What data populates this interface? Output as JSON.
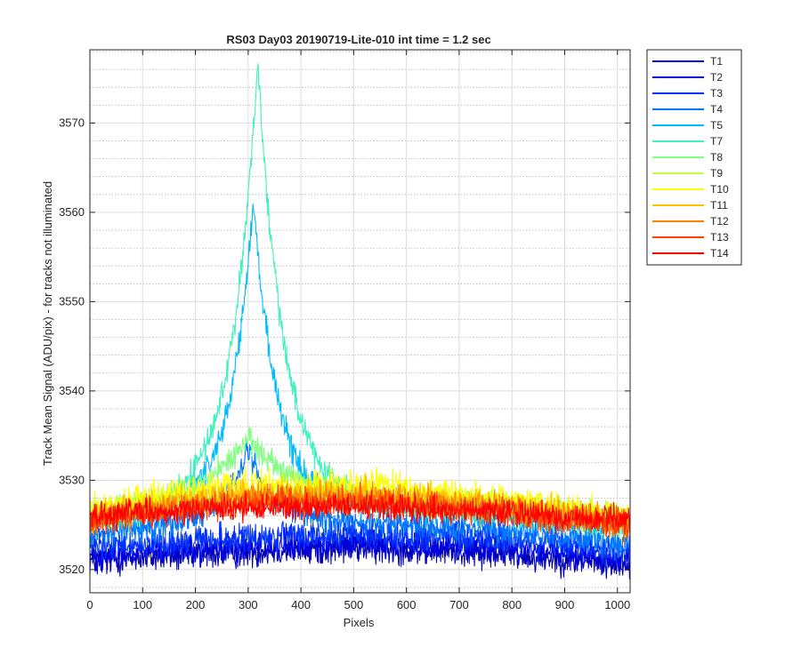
{
  "chart_data": {
    "type": "line",
    "title": "RS03 Day03 20190719-Lite-010 int time = 1.2 sec",
    "xlabel": "Pixels",
    "ylabel": "Track Mean Signal (ADU/pix) - for tracks not illuminated",
    "xlim": [
      0,
      1024
    ],
    "ylim": [
      3517.4,
      3578.2
    ],
    "x_ticks": [
      "0",
      "100",
      "200",
      "300",
      "400",
      "500",
      "600",
      "700",
      "800",
      "900",
      "1000"
    ],
    "y_ticks": [
      "3520",
      "3530",
      "3540",
      "3550",
      "3560",
      "3570"
    ],
    "grid": true,
    "minor_grid": true,
    "legend_position": "outside-top-right",
    "series": [
      {
        "name": "T1",
        "color": "#0000b0",
        "baseline": [
          [
            0,
            3521
          ],
          [
            300,
            3522
          ],
          [
            500,
            3522.5
          ],
          [
            750,
            3522
          ],
          [
            1024,
            3520.5
          ]
        ],
        "noise": 1.5
      },
      {
        "name": "T2",
        "color": "#0000e0",
        "baseline": [
          [
            0,
            3521.5
          ],
          [
            300,
            3522.5
          ],
          [
            500,
            3523
          ],
          [
            750,
            3522.5
          ],
          [
            1024,
            3521
          ]
        ],
        "noise": 1.5
      },
      {
        "name": "T3",
        "color": "#0033ff",
        "baseline": [
          [
            0,
            3522.5
          ],
          [
            300,
            3523.5
          ],
          [
            500,
            3524
          ],
          [
            750,
            3523.5
          ],
          [
            1024,
            3522
          ]
        ],
        "noise": 1.5
      },
      {
        "name": "T4",
        "color": "#0077ff",
        "baseline": [
          [
            0,
            3524
          ],
          [
            150,
            3525
          ],
          [
            300,
            3525.5
          ],
          [
            500,
            3525.5
          ],
          [
            750,
            3524.5
          ],
          [
            1024,
            3523
          ]
        ],
        "noise": 1.4,
        "peak": {
          "center": 300,
          "amplitude": 8,
          "width": 45
        }
      },
      {
        "name": "T5",
        "color": "#00bbff",
        "baseline": [
          [
            0,
            3525
          ],
          [
            150,
            3526
          ],
          [
            300,
            3527
          ],
          [
            500,
            3527
          ],
          [
            750,
            3526
          ],
          [
            1024,
            3524.5
          ]
        ],
        "noise": 1.3,
        "peak": {
          "center": 310,
          "amplitude": 34,
          "width": 45
        }
      },
      {
        "name": "T7",
        "color": "#40f0c0",
        "baseline": [
          [
            0,
            3525.5
          ],
          [
            150,
            3526.5
          ],
          [
            300,
            3527.5
          ],
          [
            500,
            3527.5
          ],
          [
            750,
            3526.5
          ],
          [
            1024,
            3525
          ]
        ],
        "noise": 1.3,
        "peak": {
          "center": 318,
          "amplitude": 49,
          "width": 50
        }
      },
      {
        "name": "T8",
        "color": "#80ff80",
        "baseline": [
          [
            0,
            3526
          ],
          [
            150,
            3527
          ],
          [
            300,
            3528
          ],
          [
            500,
            3528
          ],
          [
            750,
            3527
          ],
          [
            1024,
            3525.5
          ]
        ],
        "noise": 1.3,
        "peak": {
          "center": 300,
          "amplitude": 7,
          "width": 80
        }
      },
      {
        "name": "T9",
        "color": "#c0ff40",
        "baseline": [
          [
            0,
            3526.5
          ],
          [
            150,
            3527.5
          ],
          [
            300,
            3528.5
          ],
          [
            550,
            3528.5
          ],
          [
            750,
            3527.5
          ],
          [
            1024,
            3526
          ]
        ],
        "noise": 1.3
      },
      {
        "name": "T10",
        "color": "#ffff00",
        "baseline": [
          [
            0,
            3527
          ],
          [
            150,
            3528.5
          ],
          [
            300,
            3529.5
          ],
          [
            550,
            3529.5
          ],
          [
            750,
            3528
          ],
          [
            1024,
            3526
          ]
        ],
        "noise": 1.4
      },
      {
        "name": "T11",
        "color": "#ffc000",
        "baseline": [
          [
            0,
            3526
          ],
          [
            150,
            3527.5
          ],
          [
            300,
            3528.5
          ],
          [
            550,
            3528.5
          ],
          [
            750,
            3527.5
          ],
          [
            1024,
            3525.5
          ]
        ],
        "noise": 1.4
      },
      {
        "name": "T12",
        "color": "#ff8000",
        "baseline": [
          [
            0,
            3525.5
          ],
          [
            150,
            3527
          ],
          [
            300,
            3528
          ],
          [
            550,
            3528
          ],
          [
            750,
            3527
          ],
          [
            1024,
            3525
          ]
        ],
        "noise": 1.4
      },
      {
        "name": "T13",
        "color": "#ff4000",
        "baseline": [
          [
            0,
            3525.5
          ],
          [
            150,
            3526.5
          ],
          [
            300,
            3527.5
          ],
          [
            550,
            3527.5
          ],
          [
            750,
            3526.5
          ],
          [
            1024,
            3525
          ]
        ],
        "noise": 1.4
      },
      {
        "name": "T14",
        "color": "#ff0000",
        "baseline": [
          [
            0,
            3526
          ],
          [
            150,
            3526.5
          ],
          [
            300,
            3527
          ],
          [
            550,
            3527
          ],
          [
            750,
            3526.5
          ],
          [
            1024,
            3525.5
          ]
        ],
        "noise": 1.3
      }
    ]
  }
}
